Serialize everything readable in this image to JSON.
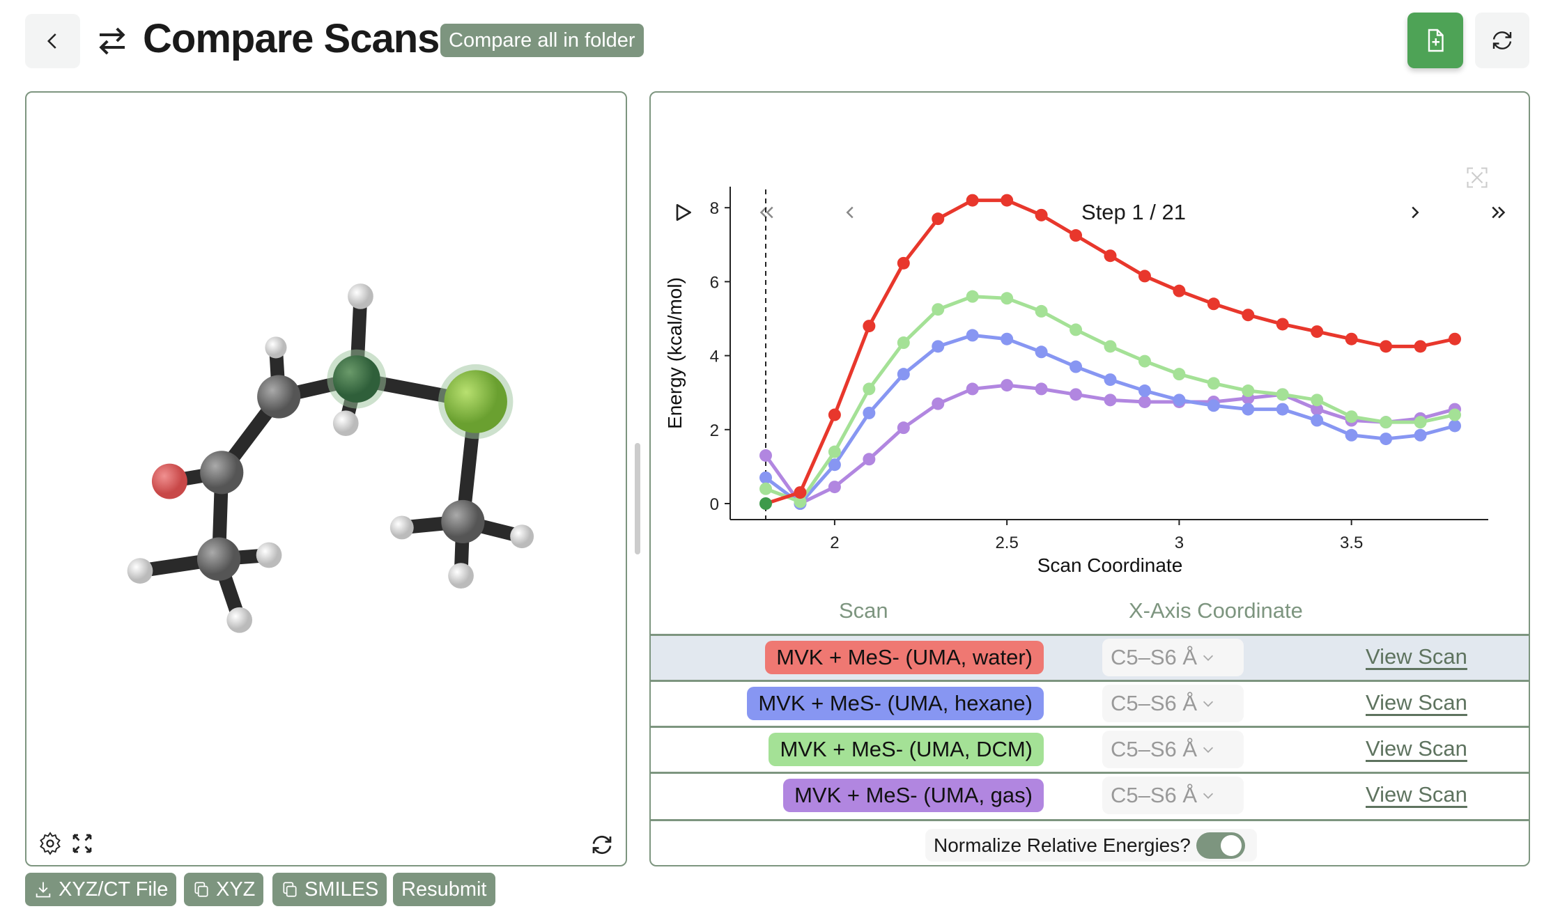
{
  "header": {
    "title": "Compare Scans",
    "badge": "Compare all in folder"
  },
  "left_panel": {
    "buttons": [
      "XYZ/CT File",
      "XYZ",
      "SMILES",
      "Resubmit"
    ]
  },
  "player": {
    "step_label": "Step 1 / 21"
  },
  "table": {
    "headers": [
      "Scan",
      "X-Axis Coordinate"
    ],
    "rows": [
      {
        "name": "MVK + MeS- (UMA, water)",
        "color": "#ef7872",
        "coordinate": "C5–S6 Å",
        "link": "View Scan",
        "selected": true
      },
      {
        "name": "MVK + MeS- (UMA, hexane)",
        "color": "#8796f2",
        "coordinate": "C5–S6 Å",
        "link": "View Scan"
      },
      {
        "name": "MVK + MeS- (UMA, DCM)",
        "color": "#a4e196",
        "coordinate": "C5–S6 Å",
        "link": "View Scan"
      },
      {
        "name": "MVK + MeS- (UMA, gas)",
        "color": "#b186e0",
        "coordinate": "C5–S6 Å",
        "link": "View Scan"
      }
    ],
    "toggle_label": "Normalize Relative Energies?",
    "toggle_on": true
  },
  "chart_data": {
    "type": "line",
    "xlabel": "Scan Coordinate",
    "ylabel": "Energy (kcal/mol)",
    "xlim": [
      1.7,
      3.9
    ],
    "ylim": [
      -0.5,
      8.6
    ],
    "xticks": [
      2,
      2.5,
      3,
      3.5
    ],
    "yticks": [
      0,
      2,
      4,
      6,
      8
    ],
    "current_x": 1.8,
    "x": [
      1.8,
      1.9,
      2.0,
      2.1,
      2.2,
      2.3,
      2.4,
      2.5,
      2.6,
      2.7,
      2.8,
      2.9,
      3.0,
      3.1,
      3.2,
      3.3,
      3.4,
      3.5,
      3.6,
      3.7,
      3.8
    ],
    "series": [
      {
        "name": "MVK + MeS- (UMA, gas)",
        "color": "#b186e0",
        "values": [
          1.3,
          0.0,
          0.45,
          1.2,
          2.05,
          2.7,
          3.1,
          3.2,
          3.1,
          2.95,
          2.8,
          2.75,
          2.75,
          2.75,
          2.85,
          2.95,
          2.55,
          2.25,
          2.2,
          2.3,
          2.55
        ]
      },
      {
        "name": "MVK + MeS- (UMA, hexane)",
        "color": "#8796f2",
        "values": [
          0.7,
          0.0,
          1.05,
          2.45,
          3.5,
          4.25,
          4.55,
          4.45,
          4.1,
          3.7,
          3.35,
          3.05,
          2.8,
          2.65,
          2.55,
          2.55,
          2.25,
          1.85,
          1.75,
          1.85,
          2.1
        ]
      },
      {
        "name": "MVK + MeS- (UMA, DCM)",
        "color": "#a4e196",
        "values": [
          0.4,
          0.05,
          1.4,
          3.1,
          4.35,
          5.25,
          5.6,
          5.55,
          5.2,
          4.7,
          4.25,
          3.85,
          3.5,
          3.25,
          3.05,
          2.95,
          2.8,
          2.35,
          2.2,
          2.2,
          2.4
        ]
      },
      {
        "name": "MVK + MeS- (UMA, water)",
        "color": "#e8372c",
        "values": [
          0.0,
          0.3,
          2.4,
          4.8,
          6.5,
          7.7,
          8.2,
          8.2,
          7.8,
          7.25,
          6.7,
          6.15,
          5.75,
          5.4,
          5.1,
          4.85,
          4.65,
          4.45,
          4.25,
          4.25,
          4.45
        ]
      }
    ]
  }
}
